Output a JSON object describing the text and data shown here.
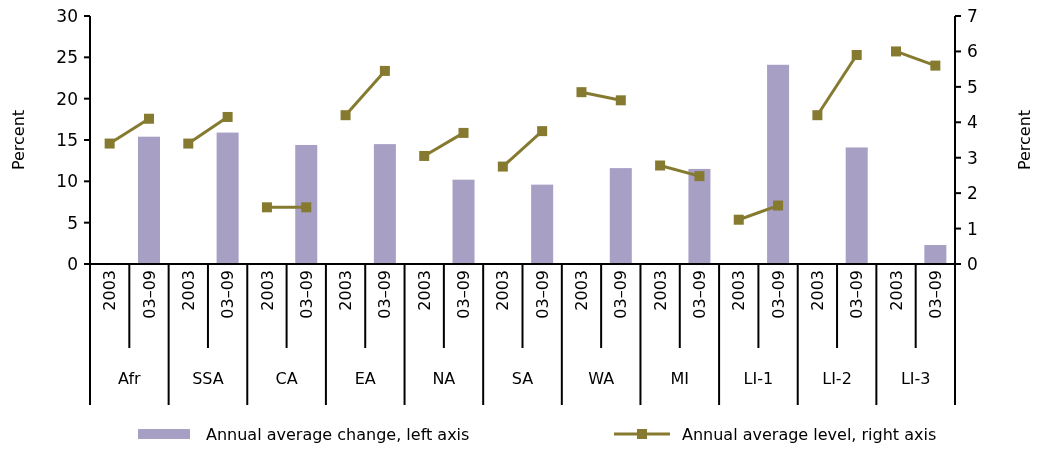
{
  "chart_data": {
    "type": "bar",
    "ylabel": "Percent",
    "y2label": "Percent",
    "categories": [
      "2003",
      "03–09",
      "2003",
      "03–09",
      "2003",
      "03–09",
      "2003",
      "03–09",
      "2003",
      "03–09",
      "2003",
      "03–09",
      "2003",
      "03–09",
      "2003",
      "03–09",
      "2003",
      "03–09",
      "2003",
      "03–09",
      "2003",
      "03–09"
    ],
    "annotations": [
      "Afr",
      "SSA",
      "CA",
      "EA",
      "NA",
      "SA",
      "WA",
      "MI",
      "LI-1",
      "LI-2",
      "LI-3"
    ],
    "ylim": [
      0,
      30
    ],
    "yticks": [
      0,
      5,
      10,
      15,
      20,
      25,
      30
    ],
    "y2lim": [
      0,
      7
    ],
    "y2ticks": [
      0,
      1,
      2,
      3,
      4,
      5,
      6,
      7
    ],
    "legend": "bottom",
    "marker": "square",
    "line_style": "solid",
    "series": [
      {
        "name": "Annual average change, left axis",
        "color": "#a7a0c4",
        "values": [
          null,
          15.4,
          null,
          15.9,
          null,
          14.4,
          null,
          14.5,
          null,
          10.2,
          null,
          9.6,
          null,
          11.6,
          null,
          11.5,
          null,
          24.1,
          null,
          14.1,
          null,
          2.3
        ]
      },
      {
        "name": "Annual average level, right axis",
        "type": "line",
        "axis": "y2",
        "color": "#857a30",
        "values": [
          3.4,
          4.1,
          null,
          null,
          null,
          null,
          null,
          null,
          null,
          null,
          null,
          null,
          null,
          null,
          null,
          null,
          null,
          null,
          null,
          null,
          null,
          null
        ]
      },
      {
        "type": "line",
        "axis": "y2",
        "color": "#857a30",
        "values": [
          null,
          null,
          3.4,
          4.15,
          null,
          null,
          null,
          null,
          null,
          null,
          null,
          null,
          null,
          null,
          null,
          null,
          null,
          null,
          null,
          null,
          null,
          null
        ]
      },
      {
        "type": "line",
        "axis": "y2",
        "color": "#857a30",
        "values": [
          null,
          null,
          null,
          null,
          1.6,
          1.6,
          null,
          null,
          null,
          null,
          null,
          null,
          null,
          null,
          null,
          null,
          null,
          null,
          null,
          null,
          null,
          null
        ]
      },
      {
        "type": "line",
        "axis": "y2",
        "color": "#857a30",
        "values": [
          null,
          null,
          null,
          null,
          null,
          null,
          4.2,
          5.45,
          null,
          null,
          null,
          null,
          null,
          null,
          null,
          null,
          null,
          null,
          null,
          null,
          null,
          null
        ]
      },
      {
        "type": "line",
        "axis": "y2",
        "color": "#857a30",
        "values": [
          null,
          null,
          null,
          null,
          null,
          null,
          null,
          null,
          3.05,
          3.7,
          null,
          null,
          null,
          null,
          null,
          null,
          null,
          null,
          null,
          null,
          null,
          null
        ]
      },
      {
        "type": "line",
        "axis": "y2",
        "color": "#857a30",
        "values": [
          null,
          null,
          null,
          null,
          null,
          null,
          null,
          null,
          null,
          null,
          2.75,
          3.75,
          null,
          null,
          null,
          null,
          null,
          null,
          null,
          null,
          null,
          null
        ]
      },
      {
        "type": "line",
        "axis": "y2",
        "color": "#857a30",
        "values": [
          null,
          null,
          null,
          null,
          null,
          null,
          null,
          null,
          null,
          null,
          null,
          null,
          4.85,
          4.62,
          null,
          null,
          null,
          null,
          null,
          null,
          null,
          null
        ]
      },
      {
        "type": "line",
        "axis": "y2",
        "color": "#857a30",
        "values": [
          null,
          null,
          null,
          null,
          null,
          null,
          null,
          null,
          null,
          null,
          null,
          null,
          null,
          null,
          2.78,
          2.48,
          null,
          null,
          null,
          null,
          null,
          null
        ]
      },
      {
        "type": "line",
        "axis": "y2",
        "color": "#857a30",
        "values": [
          null,
          null,
          null,
          null,
          null,
          null,
          null,
          null,
          null,
          null,
          null,
          null,
          null,
          null,
          null,
          null,
          1.25,
          1.65,
          null,
          null,
          null,
          null
        ]
      },
      {
        "type": "line",
        "axis": "y2",
        "color": "#857a30",
        "values": [
          null,
          null,
          null,
          null,
          null,
          null,
          null,
          null,
          null,
          null,
          null,
          null,
          null,
          null,
          null,
          null,
          null,
          null,
          4.2,
          5.9,
          null,
          null
        ]
      },
      {
        "type": "line",
        "axis": "y2",
        "color": "#857a30",
        "values": [
          null,
          null,
          null,
          null,
          null,
          null,
          null,
          null,
          null,
          null,
          null,
          null,
          null,
          null,
          null,
          null,
          null,
          null,
          null,
          null,
          6.0,
          5.6
        ]
      }
    ]
  }
}
